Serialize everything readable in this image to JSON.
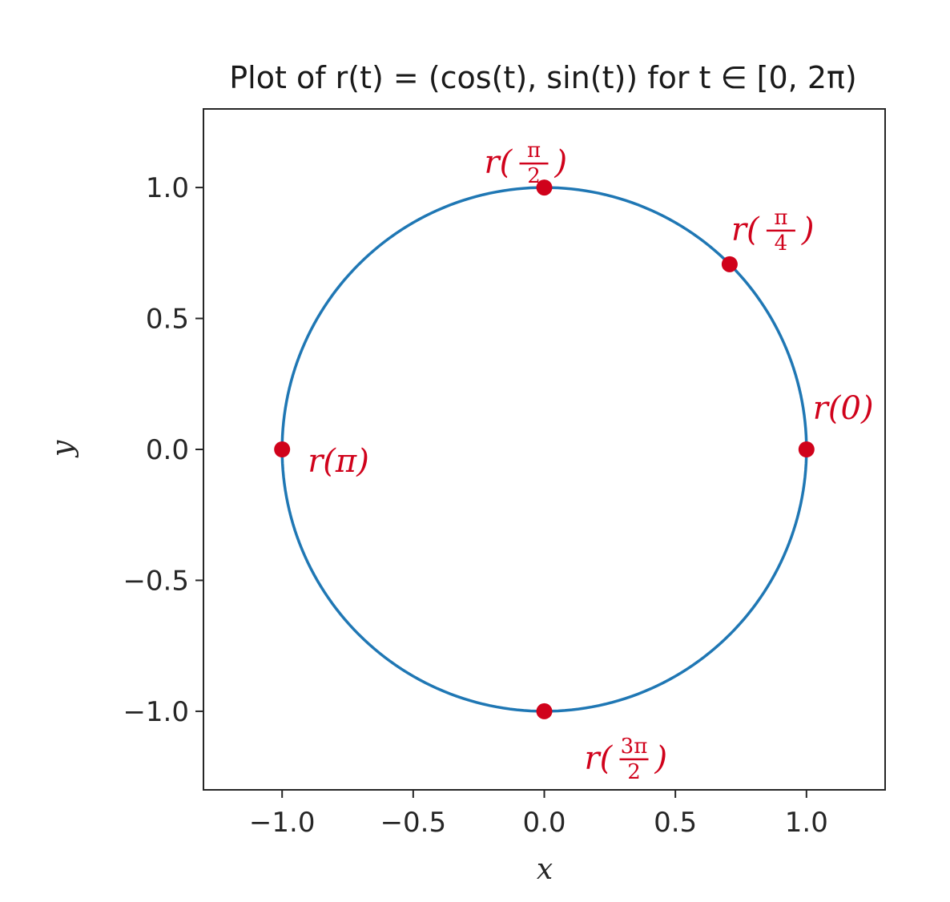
{
  "chart_data": {
    "type": "line",
    "title": "Plot of r(t) = (cos(t), sin(t)) for t ∈ [0, 2π)",
    "xlabel": "x",
    "ylabel": "y",
    "xlim": [
      -1.3,
      1.3
    ],
    "ylim": [
      -1.3,
      1.3
    ],
    "xticks": [
      -1.0,
      -0.5,
      0.0,
      0.5,
      1.0
    ],
    "yticks": [
      1.0,
      0.5,
      0.0,
      -0.5,
      -1.0
    ],
    "xtick_labels": [
      "−1.0",
      "−0.5",
      "0.0",
      "0.5",
      "1.0"
    ],
    "ytick_labels": [
      "1.0",
      "0.5",
      "0.0",
      "−0.5",
      "−1.0"
    ],
    "grid": false,
    "series": [
      {
        "curve": "unit circle",
        "t_range": [
          0,
          6.2832
        ],
        "color": "#1f77b4"
      }
    ],
    "highlighted_points": [
      {
        "t": "0",
        "x": 1.0,
        "y": 0.0,
        "label_main": "r(0)",
        "label_num": "",
        "label_den": ""
      },
      {
        "t": "π/4",
        "x": 0.707,
        "y": 0.707,
        "label_main": "r(",
        "label_num": "π",
        "label_den": "4"
      },
      {
        "t": "π/2",
        "x": 0.0,
        "y": 1.0,
        "label_main": "r(",
        "label_num": "π",
        "label_den": "2"
      },
      {
        "t": "π",
        "x": -1.0,
        "y": 0.0,
        "label_main": "r(π)",
        "label_num": "",
        "label_den": ""
      },
      {
        "t": "3π/2",
        "x": 0.0,
        "y": -1.0,
        "label_main": "r(",
        "label_num": "3π",
        "label_den": "2"
      }
    ],
    "point_color": "#d0021b"
  }
}
